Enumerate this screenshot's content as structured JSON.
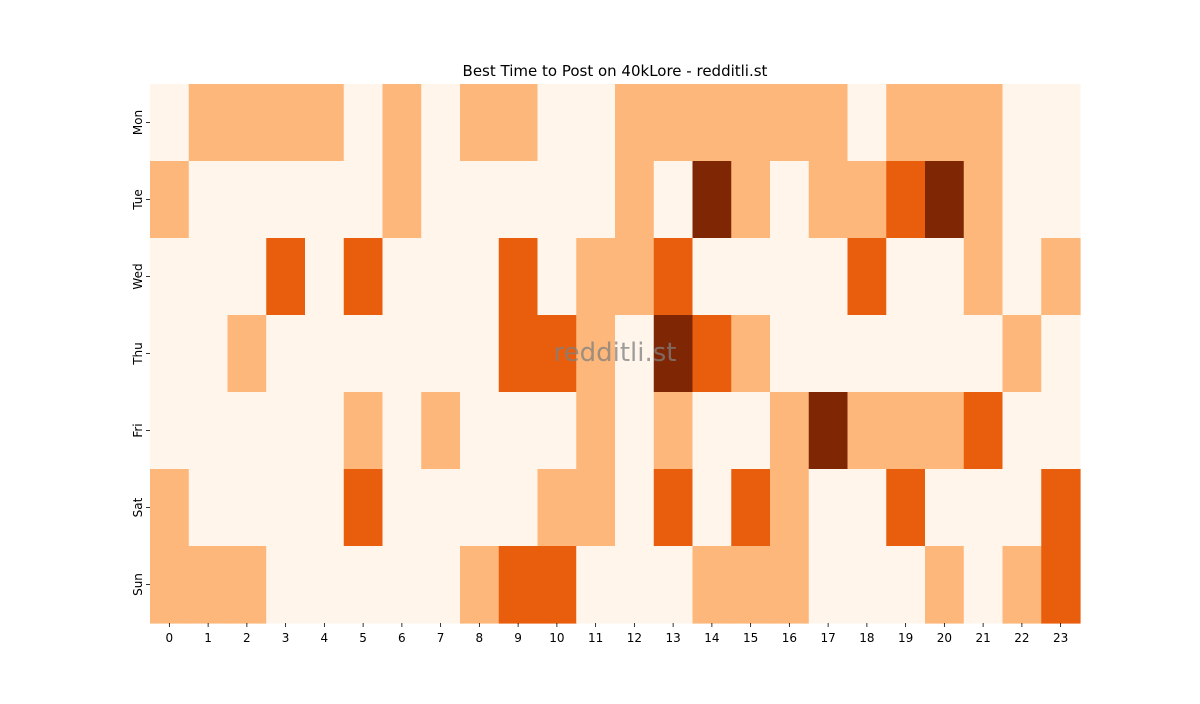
{
  "chart_data": {
    "type": "heatmap",
    "title": "Best Time to Post on 40kLore - redditli.st",
    "watermark": "redditli.st",
    "xlabel": "",
    "ylabel": "",
    "x_ticks": [
      "0",
      "1",
      "2",
      "3",
      "4",
      "5",
      "6",
      "7",
      "8",
      "9",
      "10",
      "11",
      "12",
      "13",
      "14",
      "15",
      "16",
      "17",
      "18",
      "19",
      "20",
      "21",
      "22",
      "23"
    ],
    "y_ticks": [
      "Mon",
      "Tue",
      "Wed",
      "Thu",
      "Fri",
      "Sat",
      "Sun"
    ],
    "colormap": [
      "#fff5eb",
      "#fdb77a",
      "#e95e0d",
      "#7f2704"
    ],
    "color_range": [
      0,
      3
    ],
    "colorbar": false,
    "values": [
      [
        0,
        1,
        1,
        1,
        1,
        0,
        1,
        0,
        1,
        1,
        0,
        0,
        1,
        1,
        1,
        1,
        1,
        1,
        0,
        1,
        1,
        1,
        0,
        0
      ],
      [
        1,
        0,
        0,
        0,
        0,
        0,
        1,
        0,
        0,
        0,
        0,
        0,
        1,
        0,
        3,
        1,
        0,
        1,
        1,
        2,
        3,
        1,
        0,
        0
      ],
      [
        0,
        0,
        0,
        2,
        0,
        2,
        0,
        0,
        0,
        2,
        0,
        1,
        1,
        2,
        0,
        0,
        0,
        0,
        2,
        0,
        0,
        1,
        0,
        1
      ],
      [
        0,
        0,
        1,
        0,
        0,
        0,
        0,
        0,
        0,
        2,
        2,
        1,
        0,
        3,
        2,
        1,
        0,
        0,
        0,
        0,
        0,
        0,
        1,
        0
      ],
      [
        0,
        0,
        0,
        0,
        0,
        1,
        0,
        1,
        0,
        0,
        0,
        1,
        0,
        1,
        0,
        0,
        1,
        3,
        1,
        1,
        1,
        2,
        0,
        0
      ],
      [
        1,
        0,
        0,
        0,
        0,
        2,
        0,
        0,
        0,
        0,
        1,
        1,
        0,
        2,
        0,
        2,
        1,
        0,
        0,
        2,
        0,
        0,
        0,
        2
      ],
      [
        1,
        1,
        1,
        0,
        0,
        0,
        0,
        0,
        1,
        2,
        2,
        0,
        0,
        0,
        1,
        1,
        1,
        0,
        0,
        0,
        1,
        0,
        1,
        2
      ]
    ]
  }
}
